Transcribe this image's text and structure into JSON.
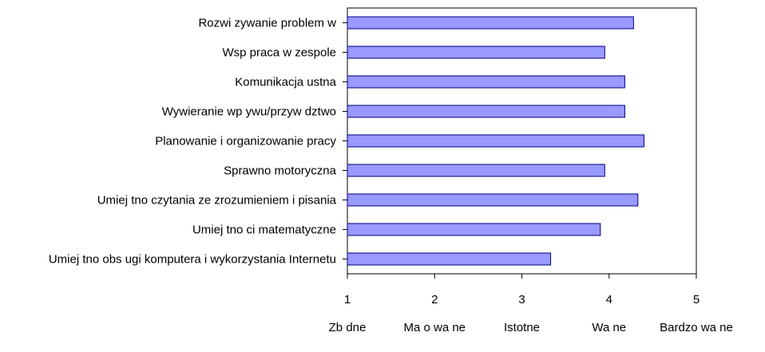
{
  "chart_data": {
    "type": "bar",
    "orientation": "horizontal",
    "title": "",
    "xlabel": "",
    "ylabel": "",
    "categories": [
      "Rozwi zywanie problem w",
      "Wsp praca w zespole",
      "Komunikacja ustna",
      "Wywieranie wp ywu/przyw dztwo",
      "Planowanie i organizowanie pracy",
      "Sprawno motoryczna",
      "Umiej tno czytania ze zrozumieniem i pisania",
      "Umiej tno ci matematyczne",
      "Umiej tno obs ugi komputera i wykorzystania Internetu"
    ],
    "values": [
      4.28,
      3.95,
      4.18,
      4.18,
      4.4,
      3.95,
      4.33,
      3.9,
      3.33
    ],
    "xlim": [
      1,
      5
    ],
    "xticks": [
      "1",
      "2",
      "3",
      "4",
      "5"
    ],
    "scale_labels": [
      "Zb dne",
      "Ma o wa ne",
      "Istotne",
      "Wa ne",
      "Bardzo wa ne"
    ],
    "grid": false,
    "bar_color": "#9999ff",
    "bar_edge_color": "#000080"
  }
}
